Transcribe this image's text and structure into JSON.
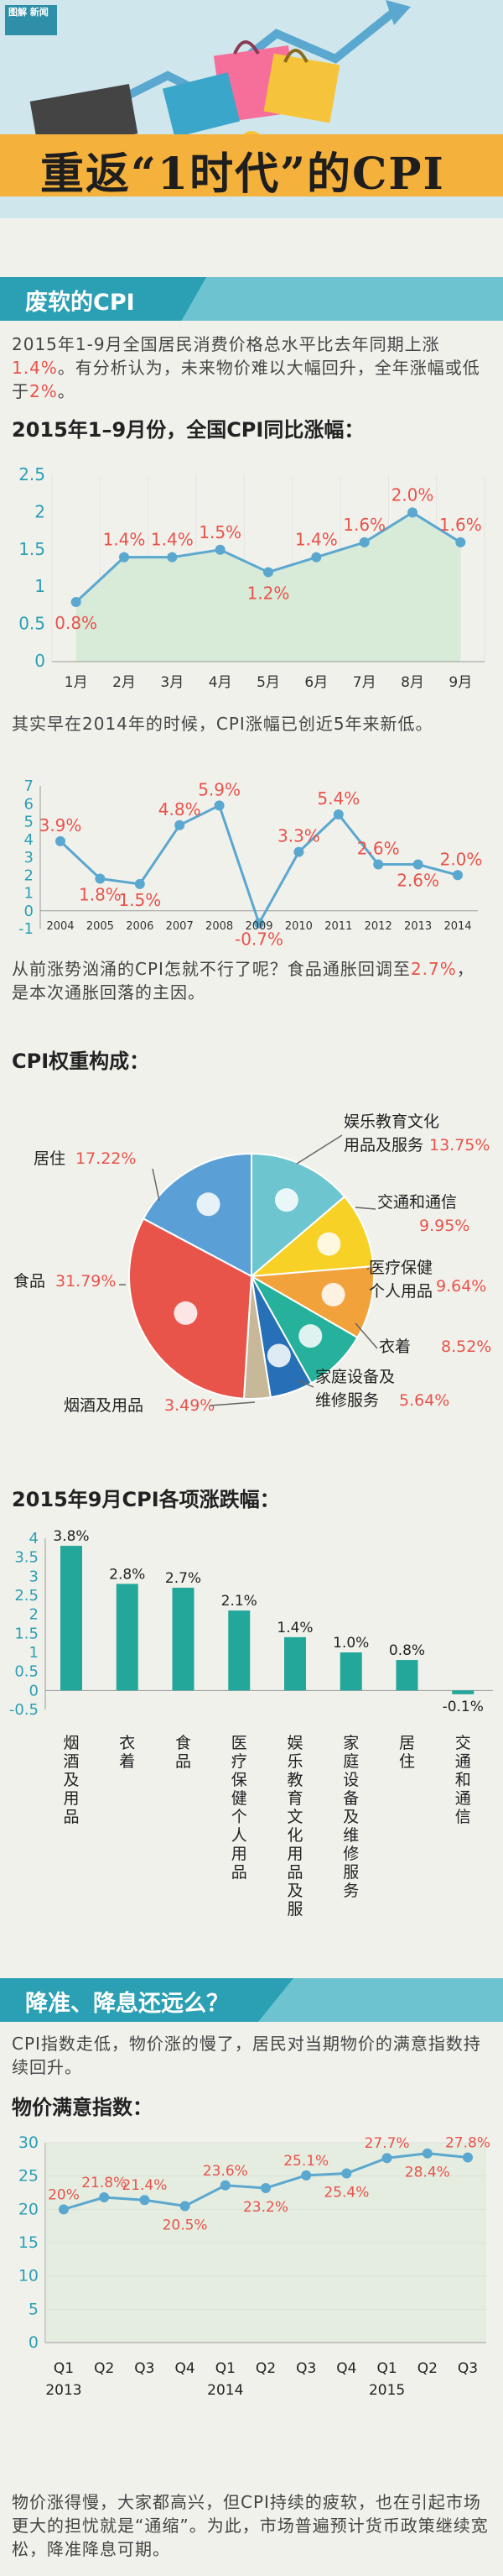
{
  "header": {
    "logo_label": "图解 新闻",
    "title": "重返“1时代”的CPI"
  },
  "section1": {
    "label": "废软的CPI",
    "para1_parts": [
      "2015年1-9月全国居民消费价格总水平比去年同期上涨",
      "1.4%",
      "。有分析认为，未来物价难以大幅回升，全年涨幅或低于",
      "2%",
      "。"
    ],
    "chart1_title": "2015年1–9月份，全国CPI同比涨幅：",
    "para2": "其实早在2014年的时候，CPI涨幅已创近5年来新低。",
    "para3_parts": [
      "从前涨势汹涌的CPI怎就不行了呢？食品通胀回调至",
      "2.7%",
      "，是本次通胀回落的主因。"
    ],
    "chart3_title": "CPI权重构成：",
    "chart4_title": "2015年9月CPI各项涨跌幅："
  },
  "section2": {
    "label": "降准、降息还远么？",
    "para1": "CPI指数走低，物价涨的慢了，居民对当期物价的满意指数持续回升。",
    "chart5_title": "物价满意指数：",
    "para2": "物价涨得慢，大家都高兴，但CPI持续的疲软，也在引起市场更大的担忧就是“通缩”。为此，市场普遍预计货币政策继续宽松，降准降息可期。"
  },
  "colors": {
    "teal": "#2b9fb4",
    "line": "#5aa7cf",
    "label_red": "#e8534a",
    "bar": "#23a79a",
    "area": "#d8ead8"
  },
  "chart_data": [
    {
      "type": "area",
      "title": "2015年1–9月份，全国CPI同比涨幅：",
      "categories": [
        "1月",
        "2月",
        "3月",
        "4月",
        "5月",
        "6月",
        "7月",
        "8月",
        "9月"
      ],
      "values": [
        0.8,
        1.4,
        1.4,
        1.5,
        1.2,
        1.4,
        1.6,
        2.0,
        1.6
      ],
      "labels": [
        "0.8%",
        "1.4%",
        "1.4%",
        "1.5%",
        "1.2%",
        "1.4%",
        "1.6%",
        "2.0%",
        "1.6%"
      ],
      "yticks": [
        "0",
        "0.5",
        "1",
        "1.5",
        "2",
        "2.5"
      ],
      "ylim": [
        0,
        2.5
      ]
    },
    {
      "type": "line",
      "categories": [
        "2004",
        "2005",
        "2006",
        "2007",
        "2008",
        "2009",
        "2010",
        "2011",
        "2012",
        "2013",
        "2014"
      ],
      "values": [
        3.9,
        1.8,
        1.5,
        4.8,
        5.9,
        -0.7,
        3.3,
        5.4,
        2.6,
        2.6,
        2.0
      ],
      "labels": [
        "3.9%",
        "1.8%",
        "1.5%",
        "4.8%",
        "5.9%",
        "-0.7%",
        "3.3%",
        "5.4%",
        "2.6%",
        "2.6%",
        "2.0%"
      ],
      "yticks": [
        "-1",
        "0",
        "1",
        "2",
        "3",
        "4",
        "5",
        "6",
        "7"
      ],
      "ylim": [
        -1,
        7
      ]
    },
    {
      "type": "pie",
      "title": "CPI权重构成：",
      "categories": [
        "娱乐教育文化用品及服务",
        "交通和通信",
        "医疗保健个人用品",
        "衣着",
        "家庭设备及维修服务",
        "烟酒及用品",
        "食品",
        "居住"
      ],
      "values": [
        13.75,
        9.95,
        9.64,
        8.52,
        5.64,
        3.49,
        31.79,
        17.22
      ],
      "labels": [
        "13.75%",
        "9.95%",
        "9.64%",
        "8.52%",
        "5.64%",
        "3.49%",
        "31.79%",
        "17.22%"
      ],
      "slice_colors": [
        "#6cc5cf",
        "#f7d125",
        "#f2a23a",
        "#25b19b",
        "#2770b7",
        "#c8b89a",
        "#e9544a",
        "#5aa0d6"
      ],
      "icons": [
        "microphone-icon",
        "phone-icon",
        "medical-kit-icon",
        "tshirt-icon",
        "tv-icon",
        "",
        "watermelon-icon",
        "house-icon"
      ]
    },
    {
      "type": "bar",
      "title": "2015年9月CPI各项涨跌幅：",
      "categories": [
        "烟酒及用品",
        "衣着",
        "食品",
        "医疗保健个人用品",
        "娱乐教育文化用品及服务",
        "家庭设备及维修服务",
        "居住",
        "交通和通信"
      ],
      "values": [
        3.8,
        2.8,
        2.7,
        2.1,
        1.4,
        1.0,
        0.8,
        -0.1
      ],
      "labels": [
        "3.8%",
        "2.8%",
        "2.7%",
        "2.1%",
        "1.4%",
        "1.0%",
        "0.8%",
        "-0.1%"
      ],
      "yticks": [
        "-0.5",
        "0",
        "0.5",
        "1",
        "1.5",
        "2",
        "2.5",
        "3",
        "3.5",
        "4"
      ],
      "ylim": [
        -0.5,
        4
      ]
    },
    {
      "type": "line",
      "title": "物价满意指数：",
      "categories": [
        "Q1",
        "Q2",
        "Q3",
        "Q4",
        "Q1",
        "Q2",
        "Q3",
        "Q4",
        "Q1",
        "Q2",
        "Q3"
      ],
      "years": [
        {
          "label": "2013",
          "at": 0
        },
        {
          "label": "2014",
          "at": 4
        },
        {
          "label": "2015",
          "at": 8
        }
      ],
      "values": [
        20,
        21.8,
        21.4,
        20.5,
        23.6,
        23.2,
        25.1,
        25.4,
        27.7,
        28.4,
        27.8
      ],
      "labels": [
        "20%",
        "21.8%",
        "21.4%",
        "20.5%",
        "23.6%",
        "23.2%",
        "25.1%",
        "25.4%",
        "27.7%",
        "28.4%",
        "27.8%"
      ],
      "yticks": [
        "0",
        "5",
        "10",
        "15",
        "20",
        "25",
        "30"
      ],
      "ylim": [
        0,
        30
      ]
    }
  ]
}
